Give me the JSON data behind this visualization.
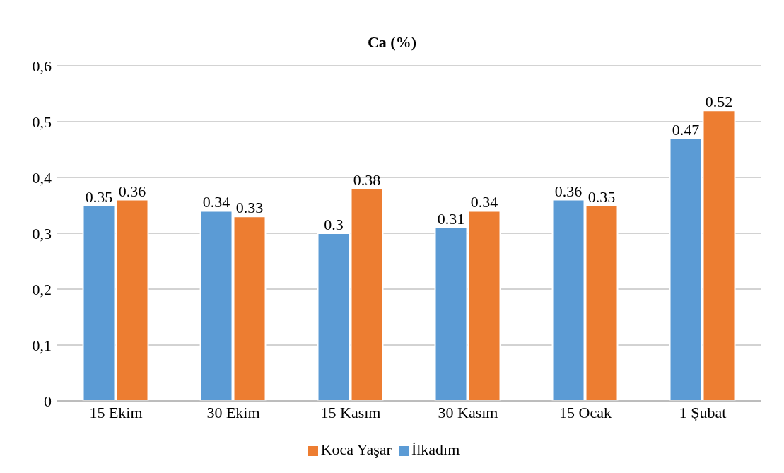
{
  "chart_data": {
    "type": "bar",
    "title": "Ca (%)",
    "categories": [
      "15 Ekim",
      "30 Ekim",
      "15 Kasım",
      "30 Kasım",
      "15 Ocak",
      "1 Şubat"
    ],
    "series": [
      {
        "name": "İlkadım",
        "color": "#5b9bd5",
        "values": [
          0.35,
          0.34,
          0.3,
          0.31,
          0.36,
          0.47
        ]
      },
      {
        "name": "Koca Yaşar",
        "color": "#ed7d31",
        "values": [
          0.36,
          0.33,
          0.38,
          0.34,
          0.35,
          0.52
        ]
      }
    ],
    "ylim": [
      0,
      0.6
    ],
    "yticks": [
      0,
      {
        "value": 0.1,
        "label": "0,1"
      },
      {
        "value": 0.2,
        "label": "0,2"
      },
      {
        "value": 0.3,
        "label": "0,3"
      },
      {
        "value": 0.4,
        "label": "0,4"
      },
      {
        "value": 0.5,
        "label": "0,5"
      },
      {
        "value": 0.6,
        "label": "0,6"
      }
    ],
    "grid": "y",
    "legend": "bottom",
    "data_labels": true
  }
}
